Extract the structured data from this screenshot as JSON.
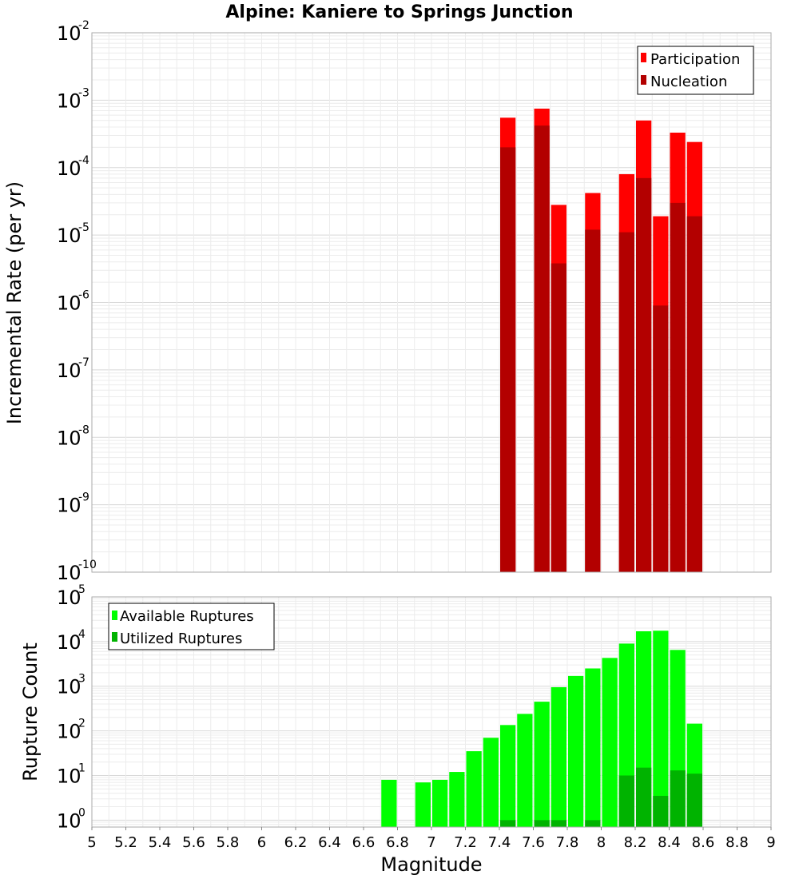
{
  "chart_data": [
    {
      "type": "bar",
      "title": "Alpine: Kaniere to Springs Junction",
      "xlabel": "Magnitude",
      "ylabel": "Incremental Rate (per yr)",
      "xlim": [
        5,
        9
      ],
      "ylim": [
        1e-10,
        0.01
      ],
      "yscale": "log",
      "grid": true,
      "legend": "top-right",
      "yticks": [
        {
          "base": "10",
          "exp": "-10"
        },
        {
          "base": "10",
          "exp": "-9"
        },
        {
          "base": "10",
          "exp": "-8"
        },
        {
          "base": "10",
          "exp": "-7"
        },
        {
          "base": "10",
          "exp": "-6"
        },
        {
          "base": "10",
          "exp": "-5"
        },
        {
          "base": "10",
          "exp": "-4"
        },
        {
          "base": "10",
          "exp": "-3"
        },
        {
          "base": "10",
          "exp": "-2"
        }
      ],
      "series": [
        {
          "name": "Participation",
          "color": "#ff0000",
          "x": [
            7.45,
            7.65,
            7.75,
            7.95,
            8.15,
            8.25,
            8.35,
            8.45,
            8.55
          ],
          "values": [
            0.00055,
            0.00075,
            2.8e-05,
            4.2e-05,
            8e-05,
            0.0005,
            1.9e-05,
            0.00033,
            0.00024
          ]
        },
        {
          "name": "Nucleation",
          "color": "#b30000",
          "x": [
            7.45,
            7.65,
            7.75,
            7.95,
            8.15,
            8.25,
            8.35,
            8.45,
            8.55
          ],
          "values": [
            0.0002,
            0.00042,
            3.8e-06,
            1.2e-05,
            1.1e-05,
            7e-05,
            9e-07,
            3e-05,
            1.9e-05
          ]
        }
      ]
    },
    {
      "type": "bar",
      "xlabel": "Magnitude",
      "ylabel": "Rupture Count",
      "xlim": [
        5,
        9
      ],
      "ylim": [
        0.7,
        100000.0
      ],
      "yscale": "log",
      "grid": true,
      "legend": "top-left",
      "yticks": [
        {
          "base": "10",
          "exp": "0"
        },
        {
          "base": "10",
          "exp": "1"
        },
        {
          "base": "10",
          "exp": "2"
        },
        {
          "base": "10",
          "exp": "3"
        },
        {
          "base": "10",
          "exp": "4"
        },
        {
          "base": "10",
          "exp": "5"
        }
      ],
      "xticks": [
        "5",
        "5.2",
        "5.4",
        "5.6",
        "5.8",
        "6",
        "6.2",
        "6.4",
        "6.6",
        "6.8",
        "7",
        "7.2",
        "7.4",
        "7.6",
        "7.8",
        "8",
        "8.2",
        "8.4",
        "8.6",
        "8.8",
        "9"
      ],
      "series": [
        {
          "name": "Available Ruptures",
          "color": "#00ff00",
          "x": [
            6.75,
            6.95,
            7.05,
            7.15,
            7.25,
            7.35,
            7.45,
            7.55,
            7.65,
            7.75,
            7.85,
            7.95,
            8.05,
            8.15,
            8.25,
            8.35,
            8.45,
            8.55
          ],
          "values": [
            8,
            7,
            8,
            12,
            35,
            70,
            135,
            240,
            450,
            950,
            1700,
            2500,
            4300,
            9000,
            17000,
            17500,
            6500,
            145
          ]
        },
        {
          "name": "Utilized Ruptures",
          "color": "#00b300",
          "x": [
            7.45,
            7.65,
            7.75,
            7.95,
            8.15,
            8.25,
            8.35,
            8.45,
            8.55
          ],
          "values": [
            1,
            1,
            1,
            1,
            10,
            15,
            3.5,
            13,
            11
          ]
        }
      ]
    }
  ]
}
